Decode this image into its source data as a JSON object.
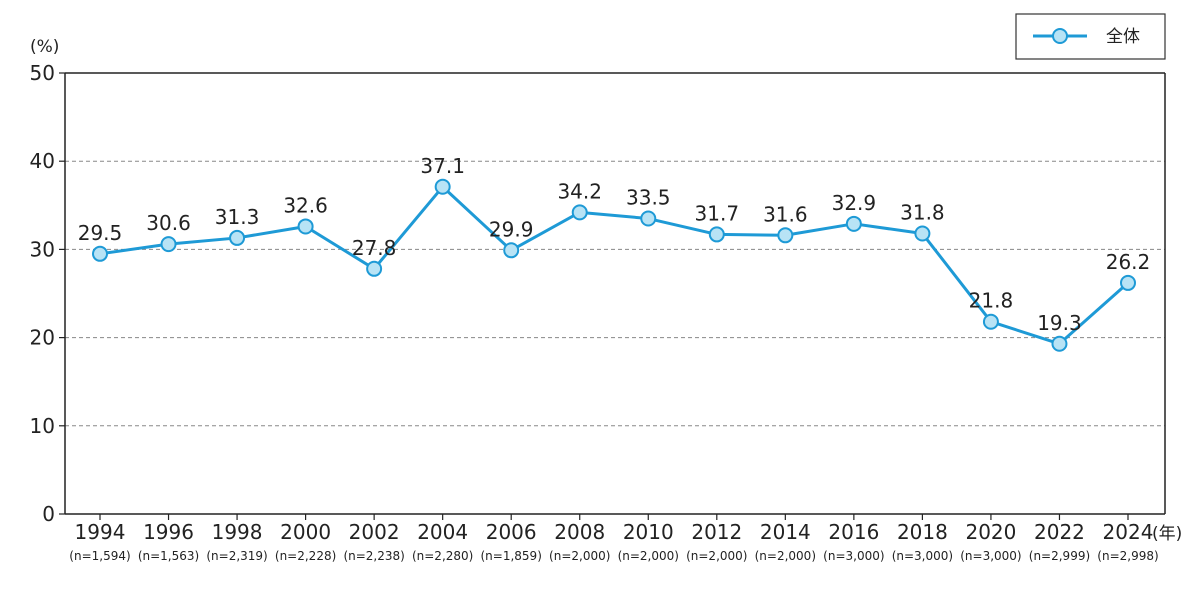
{
  "chart_data": {
    "type": "line",
    "y_unit": "(%)",
    "x_unit": "(年)",
    "ylim": [
      0,
      50
    ],
    "y_ticks": [
      "0",
      "10",
      "20",
      "30",
      "40",
      "50"
    ],
    "y_tick_values": [
      0,
      10,
      20,
      30,
      40,
      50
    ],
    "grid": "horizontal dashed",
    "legend_position": "top-right",
    "categories": [
      "1994",
      "1996",
      "1998",
      "2000",
      "2002",
      "2004",
      "2006",
      "2008",
      "2010",
      "2012",
      "2014",
      "2016",
      "2018",
      "2020",
      "2022",
      "2024"
    ],
    "sample_sizes": [
      "(n=1,594)",
      "(n=1,563)",
      "(n=2,319)",
      "(n=2,228)",
      "(n=2,238)",
      "(n=2,280)",
      "(n=1,859)",
      "(n=2,000)",
      "(n=2,000)",
      "(n=2,000)",
      "(n=2,000)",
      "(n=3,000)",
      "(n=3,000)",
      "(n=3,000)",
      "(n=2,999)",
      "(n=2,998)"
    ],
    "series": [
      {
        "name": "全体",
        "color": "#1e9ad6",
        "marker_fill": "#b8e3f5",
        "values": [
          29.5,
          30.6,
          31.3,
          32.6,
          27.8,
          37.1,
          29.9,
          34.2,
          33.5,
          31.7,
          31.6,
          32.9,
          31.8,
          21.8,
          19.3,
          26.2
        ],
        "labels": [
          "29.5",
          "30.6",
          "31.3",
          "32.6",
          "27.8",
          "37.1",
          "29.9",
          "34.2",
          "33.5",
          "31.7",
          "31.6",
          "32.9",
          "31.8",
          "21.8",
          "19.3",
          "26.2"
        ]
      }
    ]
  }
}
